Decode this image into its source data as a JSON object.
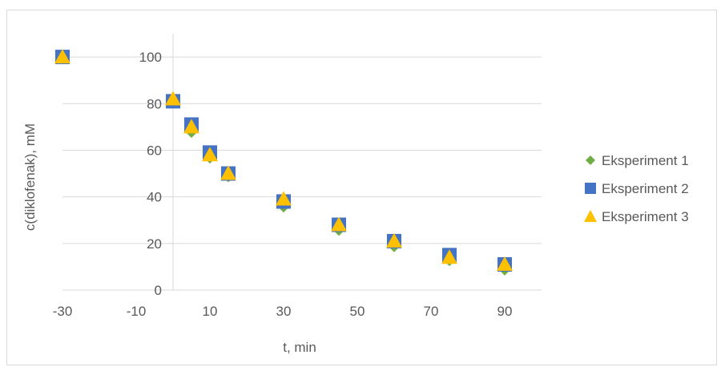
{
  "chart_data": {
    "type": "scatter",
    "title": "",
    "xlabel": "t, min",
    "ylabel": "c(diklofenak), mM",
    "xlim": [
      -30,
      100
    ],
    "ylim": [
      0,
      100
    ],
    "y_axis_max_drawn": 110,
    "x_ticks": [
      -30,
      -10,
      10,
      30,
      50,
      70,
      90
    ],
    "x_tick_labels": [
      "-30",
      "-10",
      "10",
      "30",
      "50",
      "70",
      "90"
    ],
    "y_ticks": [
      0,
      20,
      40,
      60,
      80,
      100
    ],
    "y_tick_labels": [
      "0",
      "20",
      "40",
      "60",
      "80",
      "100"
    ],
    "grid": "horizontal",
    "y_axis_crosses_at_x": 0,
    "legend_position": "right",
    "series": [
      {
        "name": "Eksperiment 1",
        "marker": "diamond",
        "color": "#70ad47",
        "x": [
          -30,
          0,
          5,
          10,
          15,
          30,
          45,
          60,
          75,
          90
        ],
        "y": [
          100,
          82,
          68,
          57,
          49,
          36,
          26,
          19,
          13,
          9
        ]
      },
      {
        "name": "Eksperiment 2",
        "marker": "square",
        "color": "#4472c4",
        "x": [
          -30,
          0,
          5,
          10,
          15,
          30,
          45,
          60,
          75,
          90
        ],
        "y": [
          100,
          81,
          71,
          59,
          50,
          38,
          28,
          21,
          15,
          11
        ]
      },
      {
        "name": "Eksperiment 3",
        "marker": "triangle",
        "color": "#ffc000",
        "x": [
          -30,
          0,
          5,
          10,
          15,
          30,
          45,
          60,
          75,
          90
        ],
        "y": [
          100,
          82,
          70,
          58,
          50,
          39,
          28,
          21,
          14,
          11
        ]
      }
    ]
  }
}
